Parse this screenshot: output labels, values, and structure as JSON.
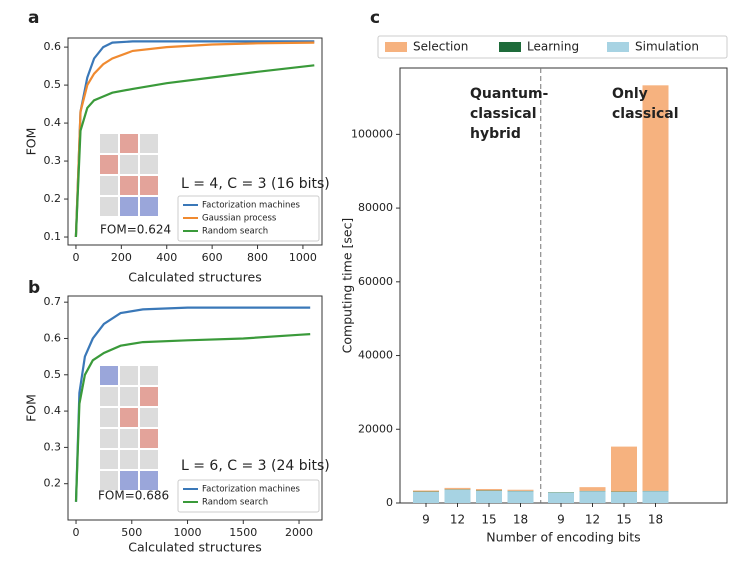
{
  "chart_data": [
    {
      "type": "line",
      "label": "a",
      "xlabel": "Calculated structures",
      "ylabel": "FOM",
      "annotation": "L = 4, C = 3 (16 bits)",
      "inset_label": "FOM=0.624",
      "legend": "lower right",
      "x": [
        0,
        20,
        50,
        80,
        120,
        160,
        250,
        400,
        600,
        800,
        1050
      ],
      "series": [
        {
          "name": "Factorization machines",
          "color": "#3a78b8",
          "values": [
            0.1,
            0.43,
            0.52,
            0.57,
            0.6,
            0.612,
            0.615,
            0.615,
            0.615,
            0.615,
            0.615
          ]
        },
        {
          "name": "Gaussian process",
          "color": "#f08a30",
          "values": [
            0.1,
            0.43,
            0.5,
            0.53,
            0.555,
            0.57,
            0.59,
            0.6,
            0.607,
            0.61,
            0.612
          ]
        },
        {
          "name": "Random search",
          "color": "#3a9a3a",
          "values": [
            0.1,
            0.38,
            0.44,
            0.46,
            0.47,
            0.48,
            0.49,
            0.505,
            0.52,
            0.535,
            0.552
          ]
        }
      ],
      "xlim": [
        -35,
        1084
      ],
      "xticks": [
        0,
        200,
        400,
        600,
        800,
        1000
      ],
      "ylim": [
        0.079,
        0.624
      ],
      "yticks": [
        0.1,
        0.2,
        0.3,
        0.4,
        0.5,
        0.6
      ]
    },
    {
      "type": "line",
      "label": "b",
      "xlabel": "Calculated structures",
      "ylabel": "FOM",
      "annotation": "L = 6, C = 3 (24 bits)",
      "inset_label": "FOM=0.686",
      "legend": "lower right",
      "x": [
        0,
        30,
        80,
        150,
        250,
        400,
        600,
        1000,
        1500,
        2000,
        2100
      ],
      "series": [
        {
          "name": "Factorization machines",
          "color": "#3a78b8",
          "values": [
            0.15,
            0.45,
            0.55,
            0.6,
            0.64,
            0.67,
            0.68,
            0.685,
            0.685,
            0.685,
            0.685
          ]
        },
        {
          "name": "Random search",
          "color": "#3a9a3a",
          "values": [
            0.15,
            0.42,
            0.5,
            0.54,
            0.56,
            0.58,
            0.59,
            0.595,
            0.6,
            0.61,
            0.612
          ]
        }
      ],
      "xlim": [
        -72,
        2206
      ],
      "xticks": [
        0,
        500,
        1000,
        1500,
        2000
      ],
      "ylim": [
        0.1,
        0.717
      ],
      "yticks": [
        0.2,
        0.3,
        0.4,
        0.5,
        0.6,
        0.7
      ]
    },
    {
      "type": "stacked_bar",
      "label": "c",
      "xlabel": "Number of encoding bits",
      "ylabel": "Computing time [sec]",
      "annotations": [
        [
          "Quantum-",
          "classical",
          "hybrid"
        ],
        [
          "Only",
          "classical"
        ]
      ],
      "legend": "top",
      "categories": [
        "9",
        "12",
        "15",
        "18",
        "9",
        "12",
        "15",
        "18"
      ],
      "series": [
        {
          "name": "Selection",
          "color": "#f6b27f",
          "values": [
            300,
            400,
            400,
            300,
            0,
            1000,
            12200,
            110000
          ]
        },
        {
          "name": "Learning",
          "color": "#1e6b3a",
          "values": [
            100,
            100,
            100,
            100,
            100,
            100,
            100,
            100
          ]
        },
        {
          "name": "Simulation",
          "color": "#a7d3e3",
          "values": [
            3000,
            3600,
            3300,
            3200,
            2800,
            3200,
            3000,
            3200
          ]
        }
      ],
      "ylim": [
        0,
        118000
      ],
      "yticks": [
        0,
        20000,
        40000,
        60000,
        80000,
        100000
      ]
    }
  ]
}
